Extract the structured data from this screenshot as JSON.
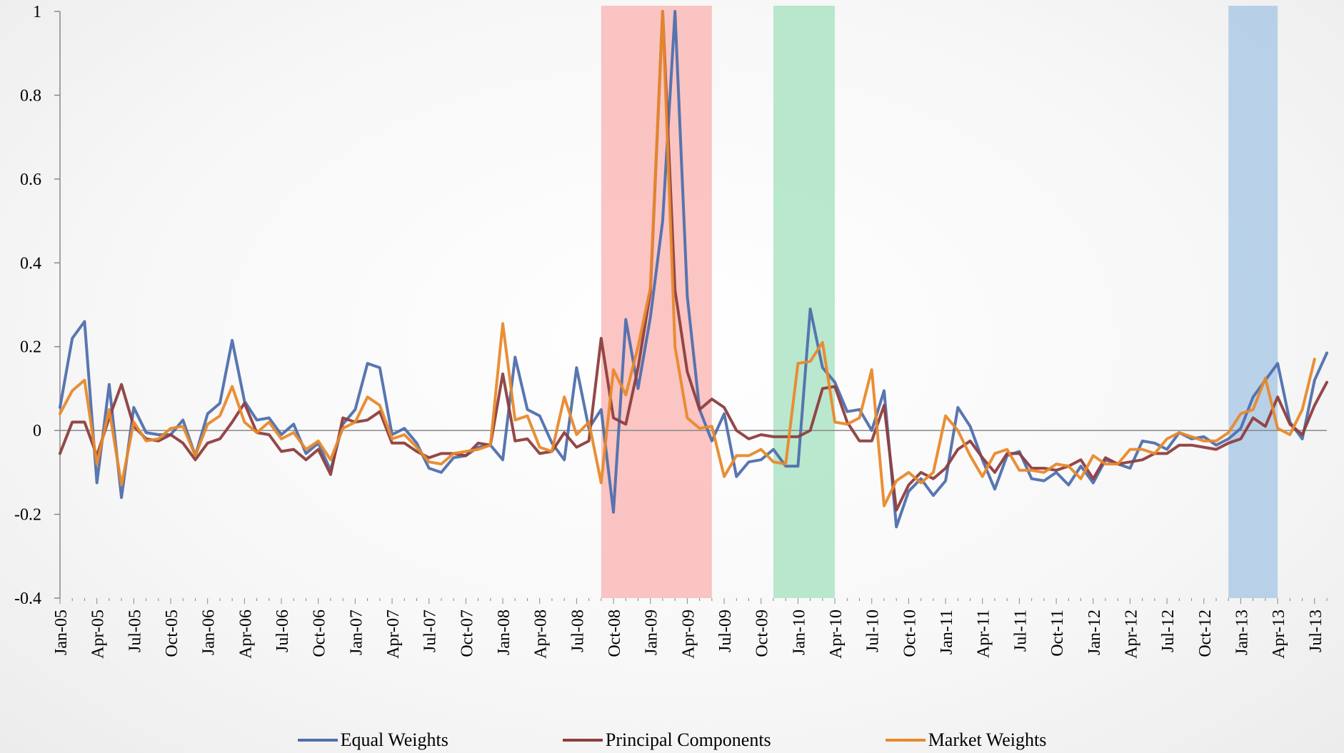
{
  "chart_data": {
    "type": "line",
    "title": "",
    "xlabel": "",
    "ylabel": "",
    "ylim": [
      -0.4,
      1
    ],
    "yticks": [
      "1",
      "0.8",
      "0.6",
      "0.4",
      "0.2",
      "0",
      "-0.2",
      "-0.4"
    ],
    "xtick_labels": [
      "Jan-05",
      "Apr-05",
      "Jul-05",
      "Oct-05",
      "Jan-06",
      "Apr-06",
      "Jul-06",
      "Oct-06",
      "Jan-07",
      "Apr-07",
      "Jul-07",
      "Oct-07",
      "Jan-08",
      "Apr-08",
      "Jul-08",
      "Oct-08",
      "Jan-09",
      "Apr-09",
      "Jul-09",
      "Oct-09",
      "Jan-10",
      "Apr-10",
      "Jul-10",
      "Oct-10",
      "Jan-11",
      "Apr-11",
      "Jul-11",
      "Oct-11",
      "Jan-12",
      "Apr-12",
      "Jul-12",
      "Oct-12",
      "Jan-13",
      "Apr-13",
      "Jul-13"
    ],
    "start_month": "Jan-05",
    "grid": false,
    "legend_position": "bottom",
    "shaded_regions": [
      {
        "from": "Sep-08",
        "to": "Jun-09",
        "color": "#f9b6b4"
      },
      {
        "from": "Nov-09",
        "to": "Apr-10",
        "color": "#a8e2c2"
      },
      {
        "from": "Dec-12",
        "to": "Apr-13",
        "color": "#a9c8e6"
      }
    ],
    "series": [
      {
        "name": "Equal Weights",
        "color": "#4f6fad",
        "values": [
          0.055,
          0.22,
          0.26,
          -0.125,
          0.11,
          -0.16,
          0.055,
          -0.005,
          -0.01,
          -0.01,
          0.025,
          -0.06,
          0.04,
          0.065,
          0.215,
          0.07,
          0.025,
          0.03,
          -0.01,
          0.015,
          -0.055,
          -0.03,
          -0.095,
          0.015,
          0.05,
          0.16,
          0.15,
          -0.01,
          0.005,
          -0.03,
          -0.09,
          -0.1,
          -0.065,
          -0.06,
          -0.04,
          -0.035,
          -0.07,
          0.175,
          0.05,
          0.035,
          -0.03,
          -0.07,
          0.15,
          0.005,
          0.05,
          -0.195,
          0.265,
          0.1,
          0.27,
          0.5,
          1.0,
          0.32,
          0.05,
          -0.025,
          0.04,
          -0.11,
          -0.075,
          -0.07,
          -0.045,
          -0.085,
          -0.085,
          0.29,
          0.15,
          0.115,
          0.045,
          0.05,
          0.0,
          0.095,
          -0.23,
          -0.145,
          -0.115,
          -0.155,
          -0.12,
          0.055,
          0.01,
          -0.07,
          -0.14,
          -0.06,
          -0.05,
          -0.115,
          -0.12,
          -0.1,
          -0.13,
          -0.085,
          -0.125,
          -0.07,
          -0.08,
          -0.09,
          -0.025,
          -0.03,
          -0.045,
          -0.005,
          -0.02,
          -0.015,
          -0.035,
          -0.02,
          0.005,
          0.08,
          0.12,
          0.16,
          0.02,
          -0.02,
          0.12,
          0.185
        ]
      },
      {
        "name": "Principal Components",
        "color": "#8e3e3e",
        "values": [
          -0.055,
          0.02,
          0.02,
          -0.06,
          0.03,
          0.11,
          0.01,
          -0.02,
          -0.025,
          -0.01,
          -0.03,
          -0.07,
          -0.03,
          -0.02,
          0.02,
          0.065,
          -0.005,
          -0.01,
          -0.05,
          -0.045,
          -0.07,
          -0.045,
          -0.105,
          0.03,
          0.02,
          0.025,
          0.045,
          -0.03,
          -0.03,
          -0.05,
          -0.065,
          -0.055,
          -0.055,
          -0.06,
          -0.03,
          -0.035,
          0.135,
          -0.025,
          -0.02,
          -0.055,
          -0.05,
          -0.005,
          -0.04,
          -0.025,
          0.22,
          0.03,
          0.015,
          0.15,
          0.33,
          1.0,
          0.335,
          0.14,
          0.05,
          0.075,
          0.055,
          0.0,
          -0.02,
          -0.01,
          -0.015,
          -0.015,
          -0.015,
          0.0,
          0.1,
          0.105,
          0.02,
          -0.025,
          -0.025,
          0.06,
          -0.19,
          -0.13,
          -0.1,
          -0.115,
          -0.09,
          -0.045,
          -0.025,
          -0.065,
          -0.1,
          -0.055,
          -0.055,
          -0.09,
          -0.09,
          -0.095,
          -0.085,
          -0.07,
          -0.115,
          -0.065,
          -0.08,
          -0.075,
          -0.07,
          -0.055,
          -0.055,
          -0.035,
          -0.035,
          -0.04,
          -0.045,
          -0.03,
          -0.02,
          0.03,
          0.01,
          0.08,
          0.015,
          -0.01,
          0.06,
          0.115
        ]
      },
      {
        "name": "Market Weights",
        "color": "#e8892b",
        "values": [
          0.04,
          0.095,
          0.12,
          -0.08,
          0.05,
          -0.13,
          0.02,
          -0.025,
          -0.02,
          0.005,
          0.01,
          -0.06,
          0.015,
          0.035,
          0.105,
          0.02,
          -0.005,
          0.02,
          -0.02,
          -0.005,
          -0.045,
          -0.025,
          -0.07,
          0.005,
          0.02,
          0.08,
          0.06,
          -0.02,
          -0.01,
          -0.04,
          -0.075,
          -0.08,
          -0.055,
          -0.05,
          -0.045,
          -0.035,
          0.255,
          0.025,
          0.035,
          -0.04,
          -0.05,
          0.08,
          -0.01,
          0.02,
          -0.125,
          0.145,
          0.085,
          0.2,
          0.34,
          1.0,
          0.2,
          0.03,
          0.005,
          0.01,
          -0.11,
          -0.06,
          -0.06,
          -0.045,
          -0.075,
          -0.08,
          0.16,
          0.165,
          0.21,
          0.02,
          0.015,
          0.03,
          0.145,
          -0.18,
          -0.12,
          -0.1,
          -0.125,
          -0.1,
          0.035,
          0.0,
          -0.06,
          -0.11,
          -0.055,
          -0.045,
          -0.095,
          -0.095,
          -0.1,
          -0.08,
          -0.085,
          -0.115,
          -0.06,
          -0.08,
          -0.08,
          -0.045,
          -0.045,
          -0.055,
          -0.02,
          -0.005,
          -0.015,
          -0.025,
          -0.025,
          -0.005,
          0.04,
          0.05,
          0.125,
          0.005,
          -0.01,
          0.05,
          0.17
        ]
      }
    ]
  }
}
